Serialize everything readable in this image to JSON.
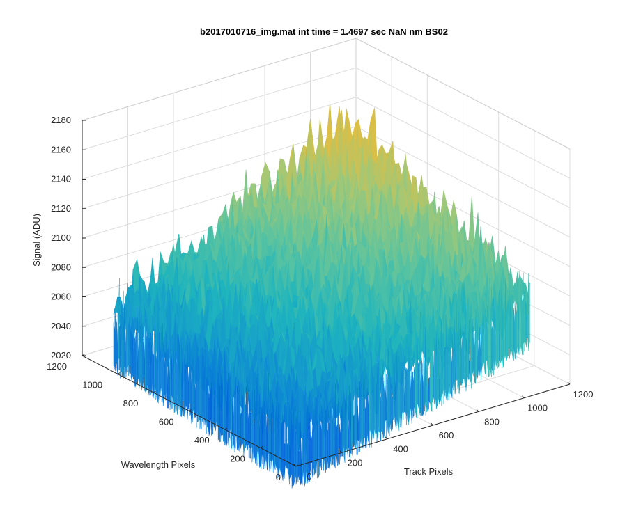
{
  "chart_data": {
    "type": "surface",
    "title": "b2017010716_img.mat int time = 1.4697 sec  NaN nm BS02",
    "xlabel": "Track Pixels",
    "ylabel": "Wavelength Pixels",
    "zlabel": "Signal (ADU)",
    "xlim": [
      0,
      1200
    ],
    "ylim": [
      0,
      1200
    ],
    "zlim": [
      2020,
      2180
    ],
    "x_ticks": [
      0,
      200,
      400,
      600,
      800,
      1000,
      1200
    ],
    "y_ticks": [
      0,
      200,
      400,
      600,
      800,
      1000,
      1200
    ],
    "z_ticks": [
      2020,
      2040,
      2060,
      2080,
      2100,
      2120,
      2140,
      2160,
      2180
    ],
    "x_tick_labels": [
      "0",
      "200",
      "400",
      "600",
      "800",
      "1000",
      "1200"
    ],
    "y_tick_labels": [
      "0",
      "200",
      "400",
      "600",
      "800",
      "1000",
      "1200"
    ],
    "z_tick_labels": [
      "2020",
      "2040",
      "2060",
      "2080",
      "2100",
      "2120",
      "2140",
      "2160",
      "2180"
    ],
    "data_extent": {
      "x": [
        0,
        1024
      ],
      "y": [
        0,
        1024
      ]
    },
    "surface_corner_values": {
      "x0_y0": 2045,
      "x1024_y0": 2090,
      "x0_y1024": 2060,
      "x1024_y1024": 2140
    },
    "noise_amplitude": 15,
    "colormap": [
      "#0064dc",
      "#0f8cd2",
      "#1eb4be",
      "#5ac3a0",
      "#a0c878",
      "#dcbe46",
      "#f5c837"
    ],
    "grid": true,
    "box": "back-planes"
  }
}
